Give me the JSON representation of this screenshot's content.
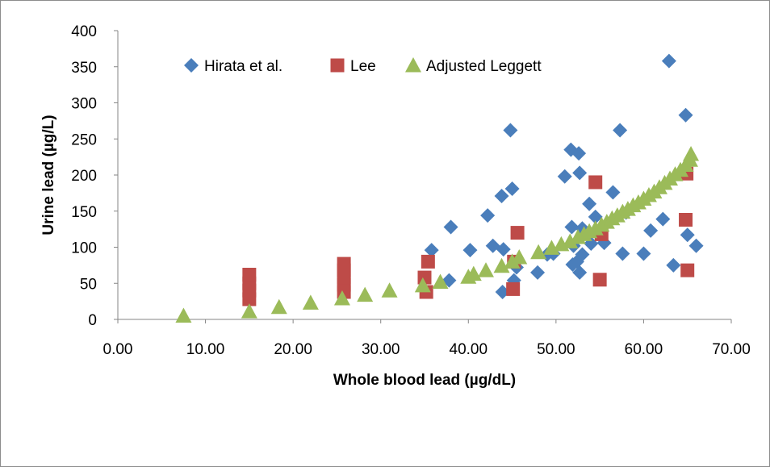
{
  "chart_data": {
    "type": "scatter",
    "title": "",
    "xlabel": "Whole blood lead (µg/dL)",
    "ylabel": "Urine lead (µg/L)",
    "xlim": [
      0,
      70
    ],
    "ylim": [
      0,
      400
    ],
    "x_ticks": [
      "0.00",
      "10.00",
      "20.00",
      "30.00",
      "40.00",
      "50.00",
      "60.00",
      "70.00"
    ],
    "y_ticks": [
      "0",
      "50",
      "100",
      "150",
      "200",
      "250",
      "300",
      "350",
      "400"
    ],
    "grid": false,
    "legend_position": "top",
    "series": [
      {
        "name": "Hirata et al.",
        "marker": "diamond",
        "color": "#4a7ebb",
        "points": [
          [
            35.8,
            96
          ],
          [
            38.0,
            128
          ],
          [
            37.8,
            54
          ],
          [
            40.2,
            96
          ],
          [
            42.2,
            144
          ],
          [
            42.8,
            102
          ],
          [
            43.8,
            171
          ],
          [
            43.9,
            38
          ],
          [
            44.0,
            97
          ],
          [
            44.8,
            262
          ],
          [
            45.0,
            181
          ],
          [
            45.2,
            54
          ],
          [
            45.5,
            72
          ],
          [
            47.9,
            65
          ],
          [
            49.0,
            90
          ],
          [
            49.7,
            91
          ],
          [
            51.0,
            198
          ],
          [
            51.7,
            235
          ],
          [
            51.8,
            128
          ],
          [
            51.9,
            76
          ],
          [
            52.0,
            102
          ],
          [
            52.4,
            80
          ],
          [
            52.6,
            230
          ],
          [
            52.7,
            203
          ],
          [
            52.7,
            65
          ],
          [
            53.0,
            126
          ],
          [
            53.0,
            90
          ],
          [
            53.8,
            160
          ],
          [
            54.0,
            105
          ],
          [
            54.5,
            142
          ],
          [
            55.5,
            106
          ],
          [
            56.5,
            176
          ],
          [
            57.3,
            262
          ],
          [
            57.6,
            91
          ],
          [
            58.0,
            148
          ],
          [
            60.0,
            91
          ],
          [
            60.8,
            123
          ],
          [
            62.2,
            139
          ],
          [
            62.9,
            358
          ],
          [
            63.4,
            75
          ],
          [
            64.8,
            283
          ],
          [
            65.0,
            117
          ],
          [
            66.0,
            102
          ]
        ]
      },
      {
        "name": "Lee",
        "marker": "square",
        "color": "#be4b48",
        "points": [
          [
            15.0,
            28
          ],
          [
            15.0,
            40
          ],
          [
            15.0,
            50
          ],
          [
            15.0,
            62
          ],
          [
            25.8,
            38
          ],
          [
            25.8,
            48
          ],
          [
            25.8,
            58
          ],
          [
            25.8,
            68
          ],
          [
            25.8,
            77
          ],
          [
            35.0,
            58
          ],
          [
            35.2,
            38
          ],
          [
            35.4,
            80
          ],
          [
            45.1,
            42
          ],
          [
            45.2,
            80
          ],
          [
            45.6,
            120
          ],
          [
            54.5,
            190
          ],
          [
            55.0,
            55
          ],
          [
            55.2,
            118
          ],
          [
            64.8,
            138
          ],
          [
            64.9,
            202
          ],
          [
            65.0,
            68
          ]
        ]
      },
      {
        "name": "Adjusted Leggett",
        "marker": "triangle",
        "color": "#9bbb59",
        "points": [
          [
            7.5,
            5
          ],
          [
            15.0,
            11
          ],
          [
            18.4,
            17
          ],
          [
            22.0,
            23
          ],
          [
            25.6,
            29
          ],
          [
            28.2,
            34
          ],
          [
            31.0,
            40
          ],
          [
            34.8,
            47
          ],
          [
            36.8,
            52
          ],
          [
            40.0,
            59
          ],
          [
            40.6,
            63
          ],
          [
            42.0,
            68
          ],
          [
            43.8,
            74
          ],
          [
            45.0,
            80
          ],
          [
            45.8,
            86
          ],
          [
            48.0,
            93
          ],
          [
            49.5,
            99
          ],
          [
            50.6,
            104
          ],
          [
            51.6,
            108
          ],
          [
            52.5,
            114
          ],
          [
            53.2,
            118
          ],
          [
            53.8,
            122
          ],
          [
            54.5,
            126
          ],
          [
            55.2,
            131
          ],
          [
            55.8,
            135
          ],
          [
            56.4,
            140
          ],
          [
            57.0,
            144
          ],
          [
            57.6,
            149
          ],
          [
            58.2,
            153
          ],
          [
            58.8,
            158
          ],
          [
            59.4,
            162
          ],
          [
            60.0,
            167
          ],
          [
            60.6,
            172
          ],
          [
            61.2,
            177
          ],
          [
            61.8,
            183
          ],
          [
            62.4,
            189
          ],
          [
            63.0,
            195
          ],
          [
            63.6,
            201
          ],
          [
            64.2,
            207
          ],
          [
            64.8,
            214
          ],
          [
            65.3,
            221
          ],
          [
            65.4,
            229
          ]
        ]
      }
    ]
  }
}
